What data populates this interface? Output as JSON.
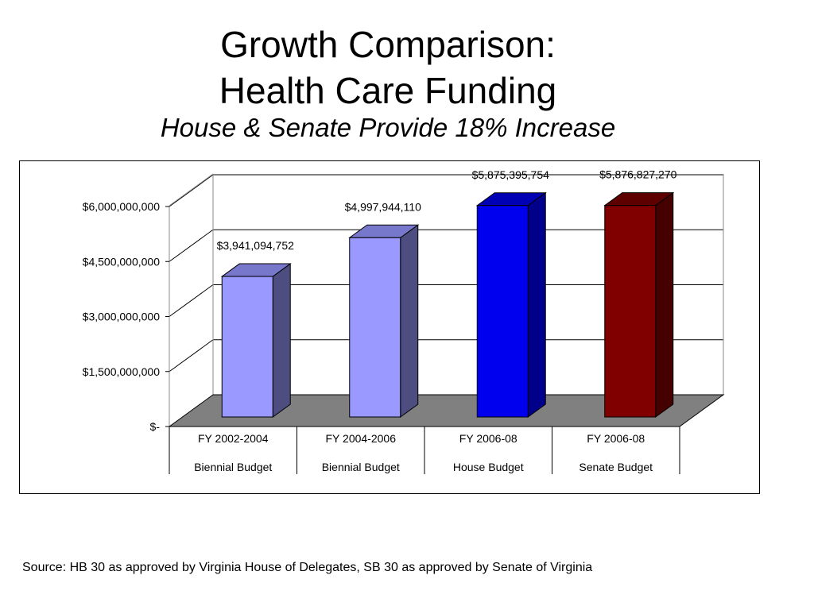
{
  "slide": {
    "title_line1": "Growth Comparison:",
    "title_line2": "Health Care Funding",
    "subtitle": "House & Senate Provide 18% Increase",
    "source": "Source: HB 30 as approved by Virginia House of Delegates, SB 30 as approved by Senate of Virginia"
  },
  "chart_data": {
    "type": "bar",
    "style": "3d-column",
    "title": "",
    "xlabel": "",
    "ylabel": "",
    "ylim": [
      0,
      6000000000
    ],
    "yticks": [
      0,
      1500000000,
      3000000000,
      4500000000,
      6000000000
    ],
    "ytick_labels": [
      "$-",
      "$1,500,000,000",
      "$3,000,000,000",
      "$4,500,000,000",
      "$6,000,000,000"
    ],
    "grid": true,
    "legend": "none",
    "categories": [
      [
        "FY 2002-2004",
        "Biennial Budget"
      ],
      [
        "FY 2004-2006",
        "Biennial Budget"
      ],
      [
        "FY 2006-08",
        "House Budget"
      ],
      [
        "FY 2006-08",
        "Senate Budget"
      ]
    ],
    "values": [
      3941094752,
      4997944110,
      5875395754,
      5876827270
    ],
    "data_labels": [
      "$3,941,094,752",
      "$4,997,944,110",
      "$5,875,395,754",
      "$5,876,827,270"
    ],
    "colors": [
      {
        "front": "#9999ff",
        "side": "#4d4d80",
        "top": "#7777cc"
      },
      {
        "front": "#9999ff",
        "side": "#4d4d80",
        "top": "#7777cc"
      },
      {
        "front": "#0000ee",
        "side": "#00008a",
        "top": "#0000b4"
      },
      {
        "front": "#800000",
        "side": "#450000",
        "top": "#5e0000"
      }
    ],
    "floor_color": "#808080"
  }
}
